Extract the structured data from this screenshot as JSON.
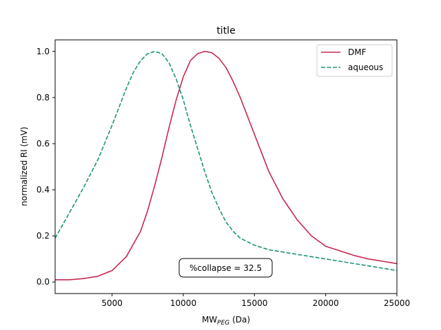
{
  "chart_data": {
    "type": "line",
    "title": "title",
    "xlabel_main": "MW",
    "xlabel_sub": "PEG",
    "xlabel_unit": " (Da)",
    "ylabel": "normalized RI (mV)",
    "xlim": [
      1000,
      25000
    ],
    "ylim": [
      -0.05,
      1.05
    ],
    "xticks": [
      5000,
      10000,
      15000,
      20000,
      25000
    ],
    "yticks": [
      0.0,
      0.2,
      0.4,
      0.6,
      0.8,
      1.0
    ],
    "xtick_labels": [
      "5000",
      "10000",
      "15000",
      "20000",
      "25000"
    ],
    "ytick_labels": [
      "0.0",
      "0.2",
      "0.4",
      "0.6",
      "0.8",
      "1.0"
    ],
    "grid": false,
    "legend_position": "top-right",
    "annotation": "%collapse = 32.5",
    "series": [
      {
        "name": "DMF",
        "color": "#c7254e",
        "style": "solid",
        "x": [
          1000,
          2000,
          3000,
          4000,
          5000,
          6000,
          7000,
          7500,
          8000,
          8500,
          9000,
          9500,
          10000,
          10500,
          11000,
          11500,
          12000,
          12500,
          13000,
          13500,
          14000,
          14500,
          15000,
          15500,
          16000,
          17000,
          18000,
          19000,
          20000,
          21000,
          22000,
          23000,
          24000,
          25000
        ],
        "values": [
          0.01,
          0.01,
          0.015,
          0.025,
          0.05,
          0.11,
          0.22,
          0.31,
          0.42,
          0.54,
          0.67,
          0.79,
          0.89,
          0.96,
          0.99,
          1.0,
          0.995,
          0.97,
          0.93,
          0.87,
          0.8,
          0.72,
          0.64,
          0.56,
          0.48,
          0.36,
          0.27,
          0.2,
          0.155,
          0.135,
          0.115,
          0.1,
          0.09,
          0.08
        ]
      },
      {
        "name": "aqueous",
        "color": "#1a9378",
        "style": "dashed",
        "x": [
          1000,
          2000,
          3000,
          4000,
          5000,
          5500,
          6000,
          6500,
          7000,
          7500,
          8000,
          8500,
          9000,
          9500,
          10000,
          10500,
          11000,
          11500,
          12000,
          12500,
          13000,
          13500,
          14000,
          15000,
          16000,
          17000,
          18000,
          19000,
          20000,
          21000,
          22000,
          23000,
          24000,
          25000
        ],
        "values": [
          0.19,
          0.3,
          0.41,
          0.53,
          0.68,
          0.76,
          0.84,
          0.91,
          0.96,
          0.99,
          1.0,
          0.99,
          0.95,
          0.88,
          0.79,
          0.68,
          0.58,
          0.48,
          0.39,
          0.32,
          0.26,
          0.22,
          0.19,
          0.16,
          0.14,
          0.13,
          0.12,
          0.11,
          0.1,
          0.09,
          0.08,
          0.07,
          0.06,
          0.05
        ]
      }
    ]
  }
}
